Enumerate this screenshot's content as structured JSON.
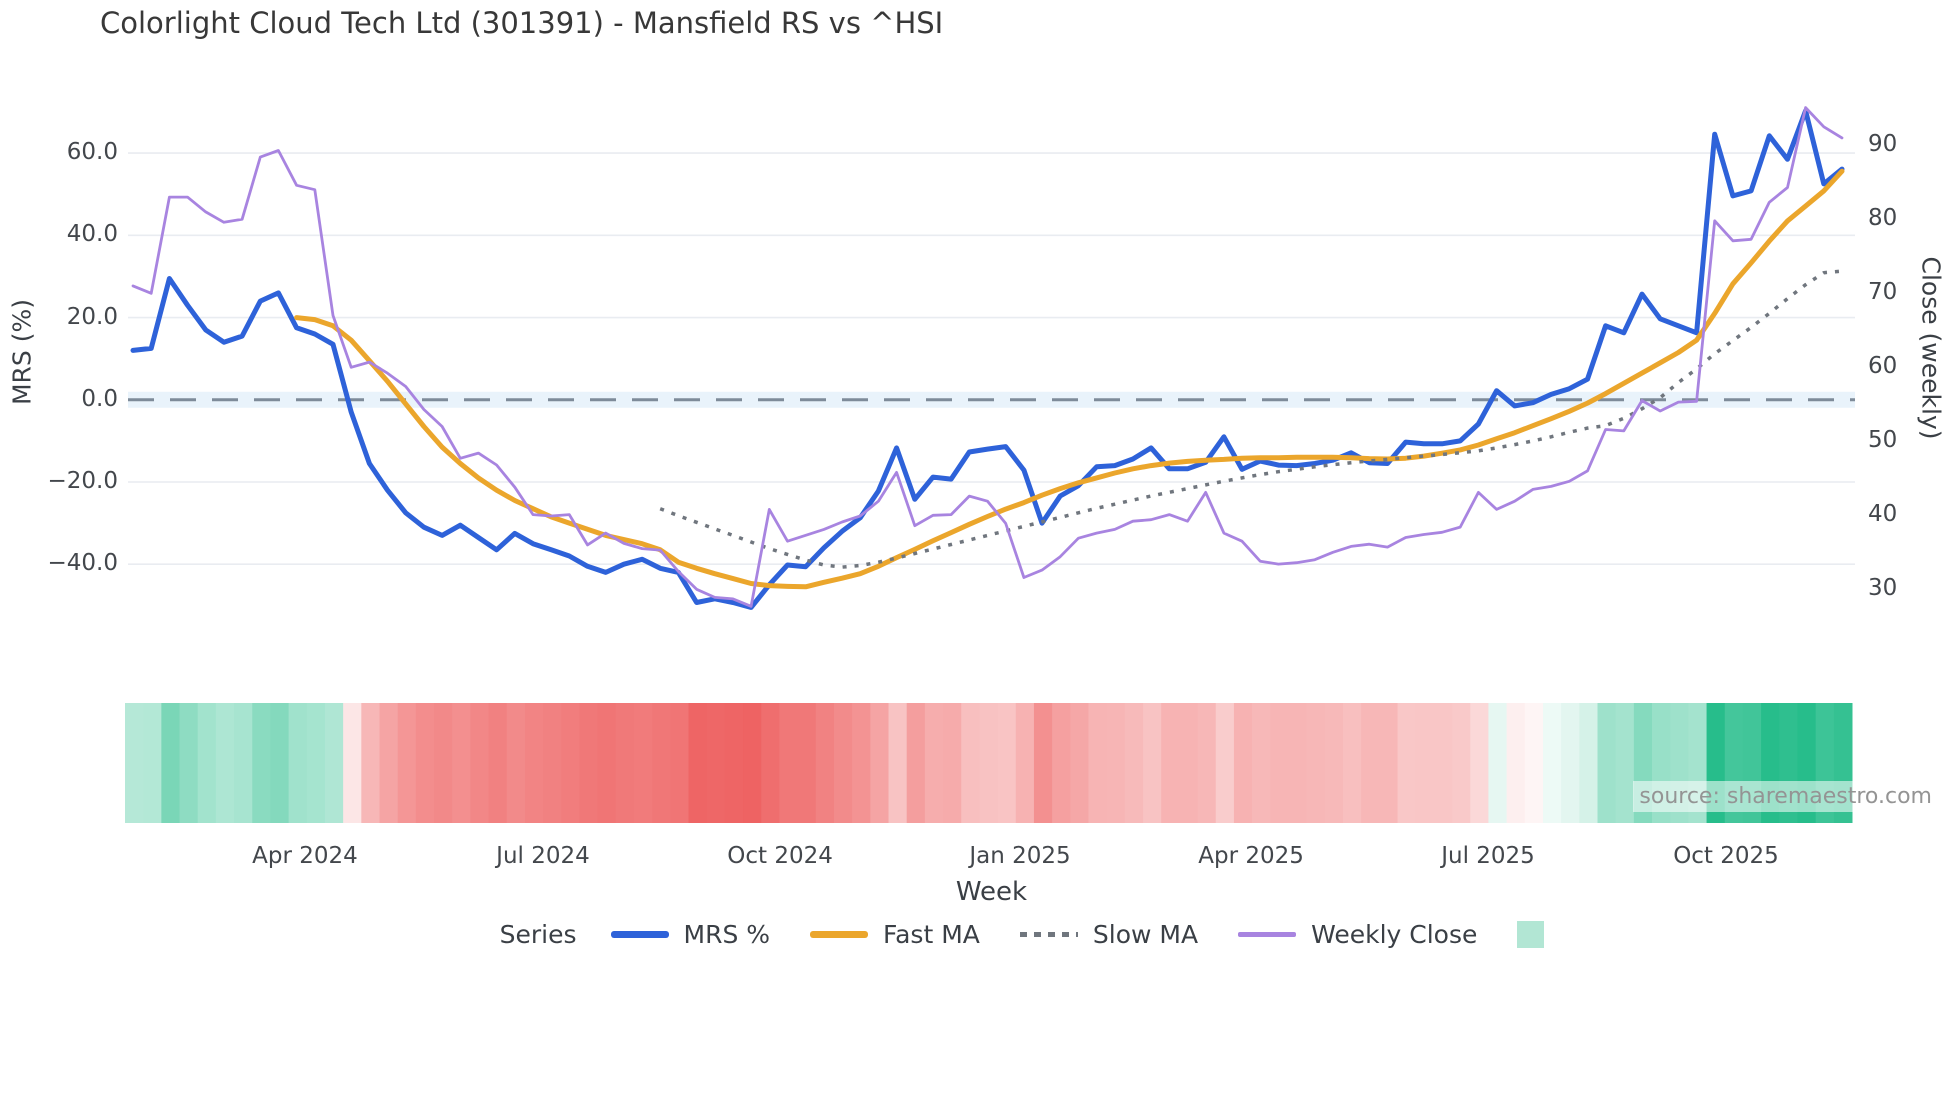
{
  "title": "Colorlight Cloud Tech Ltd (301391) - Mansfield RS vs ^HSI",
  "source_note": "source: sharemaestro.com",
  "chart_data": {
    "type": "line",
    "title": "Colorlight Cloud Tech Ltd (301391) - Mansfield RS vs ^HSI",
    "xlabel": "Week",
    "ylabel_left": "MRS (%)",
    "ylabel_right": "Close (weekly)",
    "legend_title": "Series",
    "grid": true,
    "legend_position": "bottom",
    "ylim_left": [
      -56,
      79
    ],
    "ylim_right": [
      24.5,
      99.5
    ],
    "y_left_ticks": [
      60,
      40,
      20,
      0,
      -20,
      -40
    ],
    "y_left_tick_labels": [
      "60.0",
      "40.0",
      "20.0",
      "0.0",
      "−20.0",
      "−40.0"
    ],
    "y_right_ticks": [
      90,
      80,
      70,
      60,
      50,
      40,
      30
    ],
    "y_right_tick_labels": [
      "90",
      "80",
      "70",
      "60",
      "50",
      "40",
      "30"
    ],
    "x_tick_labels": [
      "Apr 2024",
      "Jul 2024",
      "Oct 2024",
      "Jan 2025",
      "Apr 2025",
      "Jul 2025",
      "Oct 2025"
    ],
    "x_tick_indices": [
      9.46,
      22.55,
      35.59,
      48.79,
      61.5,
      74.53,
      87.62
    ],
    "zero_line_value": 0,
    "zero_line_color": "#7e8b99",
    "zero_band_color": "#e9f3fb",
    "grid_color": "#e9ecf1",
    "series": [
      {
        "name": "MRS %",
        "axis": "left",
        "style": "solid",
        "width": 5,
        "color": "#2e62d9",
        "values": [
          12,
          12.5,
          29.5,
          23,
          17,
          14,
          15.5,
          24,
          26,
          17.5,
          16,
          13.5,
          -3,
          -15.5,
          -22,
          -27.5,
          -31,
          -33,
          -30.5,
          -33.5,
          -36.5,
          -32.5,
          -35,
          -36.5,
          -38,
          -40.5,
          -42,
          -40,
          -38.8,
          -41,
          -42,
          -49.3,
          -48.4,
          -49.3,
          -50.5,
          -45,
          -40.2,
          -40.6,
          -36,
          -32,
          -28.7,
          -22.2,
          -11.7,
          -24.2,
          -18.8,
          -19.3,
          -12.7,
          -12,
          -11.4,
          -17.1,
          -30,
          -23.4,
          -20.9,
          -16.3,
          -16,
          -14.4,
          -11.7,
          -16.8,
          -16.8,
          -15.2,
          -9,
          -16.9,
          -14.9,
          -15.9,
          -16,
          -15.5,
          -14.7,
          -12.9,
          -15.3,
          -15.5,
          -10.3,
          -10.7,
          -10.7,
          -10,
          -5.9,
          2.2,
          -1.5,
          -0.7,
          1.3,
          2.7,
          5,
          18,
          16.3,
          25.7,
          19.7,
          18,
          16.3,
          64.6,
          49.6,
          50.8,
          64.2,
          58.5,
          70.3,
          52.5,
          56.1
        ]
      },
      {
        "name": "Fast MA",
        "axis": "left",
        "style": "solid",
        "width": 5,
        "color": "#eba62c",
        "values": [
          null,
          null,
          null,
          null,
          null,
          null,
          null,
          null,
          null,
          20,
          19.5,
          18,
          14.5,
          9.5,
          4.5,
          -1,
          -6.5,
          -11.5,
          -15.5,
          -19,
          -22,
          -24.5,
          -26.5,
          -28.5,
          -30,
          -31.5,
          -33,
          -34,
          -35,
          -36.5,
          -39.5,
          -41,
          -42.3,
          -43.5,
          -44.7,
          -45.2,
          -45.4,
          -45.5,
          -44.4,
          -43.4,
          -42.3,
          -40.5,
          -38.4,
          -36.4,
          -34.3,
          -32.3,
          -30.3,
          -28.4,
          -26.6,
          -25,
          -23.2,
          -21.6,
          -20.2,
          -19,
          -17.8,
          -16.8,
          -16,
          -15.4,
          -15,
          -14.7,
          -14.5,
          -14.2,
          -14.1,
          -14.1,
          -14,
          -14,
          -14,
          -14.1,
          -14.3,
          -14.4,
          -14.2,
          -13.7,
          -13,
          -12.2,
          -11,
          -9.5,
          -8,
          -6.3,
          -4.6,
          -2.8,
          -0.8,
          1.5,
          4,
          6.5,
          9,
          11.5,
          14.5,
          21,
          28.2,
          33.3,
          38.6,
          43.5,
          47.1,
          50.8,
          55.6
        ]
      },
      {
        "name": "Slow MA",
        "axis": "left",
        "style": "dotted",
        "width": 3.5,
        "color": "#70767e",
        "values": [
          null,
          null,
          null,
          null,
          null,
          null,
          null,
          null,
          null,
          null,
          null,
          null,
          null,
          null,
          null,
          null,
          null,
          null,
          null,
          null,
          null,
          null,
          null,
          null,
          null,
          null,
          null,
          null,
          null,
          -26.5,
          -28.2,
          -29.8,
          -31.4,
          -33,
          -34.6,
          -36.2,
          -37.6,
          -39,
          -40.2,
          -40.7,
          -40.3,
          -39.5,
          -38.5,
          -37.4,
          -36.3,
          -35.2,
          -34.1,
          -33,
          -31.9,
          -30.8,
          -29.7,
          -28.6,
          -27.5,
          -26.4,
          -25.4,
          -24.4,
          -23.4,
          -22.5,
          -21.6,
          -20.7,
          -19.8,
          -19,
          -18.2,
          -17.5,
          -16.9,
          -16.3,
          -15.8,
          -15.3,
          -14.9,
          -14.5,
          -14.1,
          -13.7,
          -13.3,
          -12.9,
          -12.4,
          -11.7,
          -10.9,
          -10,
          -9,
          -7.9,
          -6.9,
          -6.3,
          -4.5,
          -2.2,
          0.5,
          4.2,
          7.5,
          11.2,
          14.4,
          17.6,
          21,
          24.6,
          28,
          30.9,
          31.3
        ]
      },
      {
        "name": "Weekly Close",
        "axis": "right",
        "style": "solid",
        "width": 2.8,
        "color": "#a884e0",
        "values": [
          71,
          70,
          83,
          83,
          81,
          79.6,
          80,
          88.4,
          89.3,
          84.6,
          84,
          67,
          60,
          60.7,
          59.2,
          57.4,
          54.3,
          52,
          47.7,
          48.4,
          46.8,
          43.8,
          40.1,
          39.9,
          40.1,
          36,
          37.6,
          36.2,
          35.5,
          35.3,
          32.4,
          30,
          28.9,
          28.7,
          27.7,
          40.8,
          36.5,
          37.3,
          38.1,
          39.1,
          39.9,
          41.9,
          45.8,
          38.6,
          40,
          40.1,
          42.6,
          41.9,
          38.9,
          31.6,
          32.6,
          34.4,
          36.9,
          37.6,
          38.1,
          39.2,
          39.4,
          40.1,
          39.2,
          43.1,
          37.6,
          36.5,
          33.8,
          33.4,
          33.6,
          34,
          35,
          35.8,
          36.1,
          35.7,
          37,
          37.4,
          37.7,
          38.4,
          43.1,
          40.8,
          41.9,
          43.5,
          43.9,
          44.6,
          46,
          51.6,
          51.4,
          55.5,
          54.1,
          55.3,
          55.4,
          79.8,
          77.1,
          77.3,
          82.3,
          84.3,
          95.1,
          92.5,
          91
        ]
      }
    ],
    "legend_extra_swatch_color": "#b2e6d4",
    "heat_strip": {
      "basis": "MRS %",
      "positive_color": "#27bd8b",
      "negative_color": "#ed5a5a",
      "positive_max": 62,
      "negative_max": 55,
      "gamma": 0.65
    }
  }
}
